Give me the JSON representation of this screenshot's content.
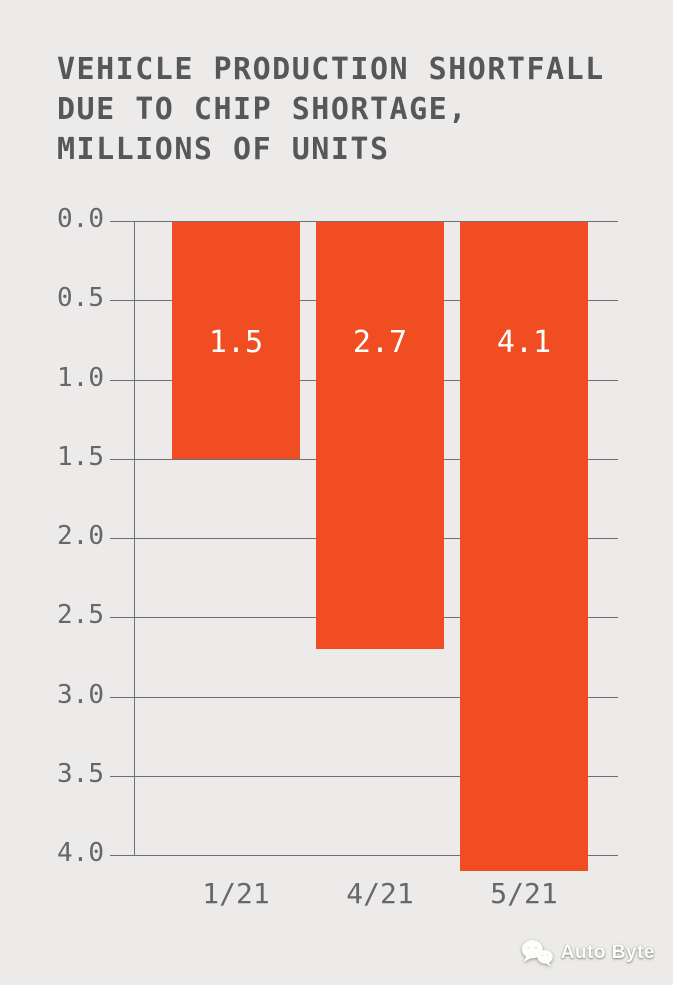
{
  "page": {
    "background": "#ECEBE9"
  },
  "title": {
    "lines": [
      "VEHICLE PRODUCTION SHORTFALL",
      "DUE TO CHIP SHORTAGE,",
      "MILLIONS OF UNITS"
    ],
    "color": "#56575A"
  },
  "chart_data": {
    "type": "bar",
    "title": "VEHICLE PRODUCTION SHORTFALL DUE TO CHIP SHORTAGE, MILLIONS OF UNITS",
    "categories": [
      "1/21",
      "4/21",
      "5/21"
    ],
    "values": [
      1.5,
      2.7,
      4.1
    ],
    "value_labels": [
      "1.5",
      "2.7",
      "4.1"
    ],
    "xlabel": "",
    "ylabel": "",
    "y_axis": {
      "min": 0.0,
      "max": 4.0,
      "tick_step": 0.5,
      "tick_labels": [
        "0.0",
        "0.5",
        "1.0",
        "1.5",
        "2.0",
        "2.5",
        "3.0",
        "3.5",
        "4.0"
      ],
      "inverted": true
    },
    "grid": true,
    "legend": false,
    "orientation": "vertical-hanging-from-top",
    "colors": {
      "bar": "#F04D23",
      "grid": "#6E6F72",
      "axis": "#6E6F72",
      "tick_labels": "#66676B",
      "value_labels": "#FFFFFF"
    }
  },
  "watermark": {
    "label": "Auto Byte",
    "icon": "wechat-logo-icon"
  }
}
